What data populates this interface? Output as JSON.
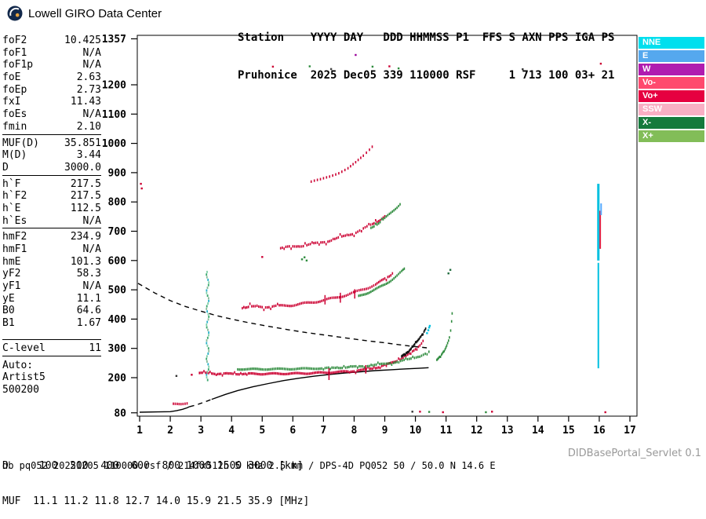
{
  "brand": {
    "title": "Lowell GIRO Data Center"
  },
  "station_header": {
    "line1": "Station    YYYY DAY   DDD HHMMSS P1  FFS S AXN PPS IGA PS",
    "line2": "Pruhonice  2025 Dec05 339 110000 RSF     1 713 100 03+ 21"
  },
  "params": {
    "groups": [
      {
        "rows": [
          [
            "foF2",
            "10.425"
          ],
          [
            "foF1",
            "N/A"
          ],
          [
            "foF1p",
            "N/A"
          ],
          [
            "foE",
            "2.63"
          ],
          [
            "foEp",
            "2.73"
          ],
          [
            "fxI",
            "11.43"
          ],
          [
            "foEs",
            "N/A"
          ],
          [
            "fmin",
            "2.10"
          ]
        ]
      },
      {
        "rows": [
          [
            "MUF(D)",
            "35.851"
          ],
          [
            "M(D)",
            "3.44"
          ],
          [
            "D",
            "3000.0"
          ]
        ]
      },
      {
        "rows": [
          [
            "h`F",
            "217.5"
          ],
          [
            "h`F2",
            "217.5"
          ],
          [
            "h`E",
            "112.5"
          ],
          [
            "h`Es",
            "N/A"
          ]
        ]
      },
      {
        "rows": [
          [
            "hmF2",
            "234.9"
          ],
          [
            "hmF1",
            "N/A"
          ],
          [
            "hmE",
            "101.3"
          ],
          [
            "yF2",
            "58.3"
          ],
          [
            "yF1",
            "N/A"
          ],
          [
            "yE",
            "11.1"
          ],
          [
            "B0",
            "64.6"
          ],
          [
            "B1",
            "1.67"
          ]
        ]
      },
      {
        "rows": [
          [
            "C-level",
            "11"
          ]
        ]
      }
    ],
    "auto_label": "Auto:",
    "auto_program": "Artist5",
    "auto_version": "500200"
  },
  "legend": [
    {
      "label": "NNE",
      "color": "#00dfee"
    },
    {
      "label": "E",
      "color": "#55a8ee"
    },
    {
      "label": "W",
      "color": "#b01cb0"
    },
    {
      "label": "Vo-",
      "color": "#ff4a6e"
    },
    {
      "label": "Vo+",
      "color": "#e60040"
    },
    {
      "label": "SSW",
      "color": "#f9afc4"
    },
    {
      "label": "X-",
      "color": "#157a3c"
    },
    {
      "label": "X+",
      "color": "#82bd58"
    }
  ],
  "scales": {
    "d": {
      "label": "D",
      "values": [
        "100",
        "200",
        "400",
        "600",
        "800",
        "1000",
        "1500",
        "3000"
      ],
      "unit": "[km]"
    },
    "muf": {
      "label": "MUF",
      "values": [
        "11.1",
        "11.2",
        "11.8",
        "12.7",
        "14.0",
        "15.9",
        "21.5",
        "35.9"
      ],
      "unit": "[MHz]"
    }
  },
  "footer": {
    "status": "db pq052 20251205 110000.rsf / 214fx512h 5 kHz 2.5 km / DPS-4D PQ052 50 / 50.0 N 14.6 E",
    "servlet": "DIDBasePortal_Servlet 0.1"
  },
  "chart_data": {
    "type": "scatter",
    "x_axis": {
      "ticks": [
        1,
        2,
        3,
        4,
        5,
        6,
        7,
        8,
        9,
        10,
        11,
        12,
        13,
        14,
        15,
        16,
        17
      ],
      "range": [
        0.92,
        17.23
      ]
    },
    "y_axis": {
      "ticks": [
        80,
        200,
        300,
        400,
        500,
        600,
        700,
        800,
        900,
        1000,
        1100,
        1200,
        1357
      ],
      "range": [
        80,
        1369
      ]
    },
    "grid": false,
    "legend_position": "right-outside",
    "traces": [
      {
        "name": "F-trace-1hop-O",
        "color": "#cc0033",
        "style": "dots",
        "spread": 2.5,
        "step": 0.05,
        "points": [
          [
            2.95,
            216
          ],
          [
            3.5,
            214
          ],
          [
            4.0,
            213
          ],
          [
            5.0,
            213
          ],
          [
            6.0,
            214
          ],
          [
            6.5,
            215
          ],
          [
            7.0,
            217
          ],
          [
            7.5,
            219
          ],
          [
            8.0,
            223
          ],
          [
            8.4,
            228
          ],
          [
            8.8,
            236
          ],
          [
            9.1,
            246
          ],
          [
            9.4,
            258
          ],
          [
            9.7,
            274
          ],
          [
            9.95,
            292
          ],
          [
            10.15,
            312
          ],
          [
            10.3,
            332
          ]
        ]
      },
      {
        "name": "F-trace-1hop-X",
        "color": "#2e8b3d",
        "style": "dots",
        "spread": 2.2,
        "step": 0.055,
        "points": [
          [
            4.2,
            229
          ],
          [
            5.0,
            229
          ],
          [
            6.0,
            230
          ],
          [
            7.0,
            232
          ],
          [
            7.5,
            234
          ],
          [
            8.0,
            237
          ],
          [
            8.5,
            241
          ],
          [
            9.0,
            247
          ],
          [
            9.4,
            254
          ],
          [
            9.8,
            263
          ],
          [
            10.2,
            276
          ],
          [
            10.5,
            290
          ]
        ]
      },
      {
        "name": "F-trace-foF2-cusp",
        "color": "#111111",
        "style": "dots",
        "spread": 1.5,
        "step": 0.03,
        "points": [
          [
            9.55,
            272
          ],
          [
            9.75,
            288
          ],
          [
            9.92,
            306
          ],
          [
            10.06,
            324
          ],
          [
            10.18,
            342
          ],
          [
            10.28,
            358
          ],
          [
            10.36,
            372
          ]
        ]
      },
      {
        "name": "F-trace-2hop-O",
        "color": "#cc0033",
        "style": "dots",
        "spread": 4,
        "step": 0.055,
        "points": [
          [
            4.35,
            440
          ],
          [
            4.6,
            441
          ],
          [
            5.0,
            442
          ],
          [
            5.5,
            444
          ],
          [
            6.0,
            448
          ],
          [
            6.5,
            455
          ],
          [
            7.0,
            464
          ],
          [
            7.4,
            473
          ],
          [
            7.8,
            484
          ],
          [
            8.1,
            494
          ],
          [
            8.4,
            505
          ],
          [
            8.7,
            519
          ],
          [
            8.95,
            533
          ],
          [
            9.15,
            547
          ],
          [
            9.3,
            560
          ]
        ]
      },
      {
        "name": "F-trace-2hop-X",
        "color": "#2e8b3d",
        "style": "dots",
        "spread": 3,
        "step": 0.05,
        "points": [
          [
            8.15,
            478
          ],
          [
            8.45,
            490
          ],
          [
            8.75,
            504
          ],
          [
            9.0,
            518
          ],
          [
            9.2,
            532
          ],
          [
            9.4,
            548
          ],
          [
            9.55,
            562
          ],
          [
            9.68,
            575
          ]
        ]
      },
      {
        "name": "F-trace-3hop-O",
        "color": "#cc0033",
        "style": "dots",
        "spread": 3.5,
        "step": 0.055,
        "points": [
          [
            5.6,
            643
          ],
          [
            6.0,
            647
          ],
          [
            6.4,
            652
          ],
          [
            6.8,
            659
          ],
          [
            7.2,
            668
          ],
          [
            7.6,
            680
          ],
          [
            8.0,
            694
          ],
          [
            8.3,
            708
          ],
          [
            8.6,
            724
          ],
          [
            8.85,
            740
          ],
          [
            9.05,
            755
          ]
        ]
      },
      {
        "name": "F-trace-3hop-X",
        "color": "#2e8b3d",
        "style": "dots",
        "spread": 3,
        "step": 0.05,
        "points": [
          [
            8.55,
            712
          ],
          [
            8.8,
            728
          ],
          [
            9.0,
            744
          ],
          [
            9.2,
            762
          ],
          [
            9.4,
            782
          ],
          [
            9.55,
            800
          ]
        ]
      },
      {
        "name": "F-trace-4hop-O",
        "color": "#cc0033",
        "style": "dots",
        "spread": 3,
        "step": 0.09,
        "points": [
          [
            6.6,
            868
          ],
          [
            6.9,
            876
          ],
          [
            7.2,
            887
          ],
          [
            7.5,
            900
          ],
          [
            7.8,
            916
          ],
          [
            8.05,
            934
          ],
          [
            8.3,
            956
          ],
          [
            8.5,
            978
          ],
          [
            8.68,
            1000
          ]
        ]
      },
      {
        "name": "X-trace-fxI-cusp",
        "color": "#2e8b3d",
        "style": "dots",
        "spread": 1.5,
        "step": 0.03,
        "points": [
          [
            10.7,
            262
          ],
          [
            10.85,
            278
          ],
          [
            10.97,
            296
          ],
          [
            11.05,
            316
          ],
          [
            11.11,
            338
          ],
          [
            11.15,
            362
          ],
          [
            11.18,
            390
          ],
          [
            11.2,
            420
          ],
          [
            11.21,
            438
          ]
        ]
      },
      {
        "name": "E-trace",
        "color": "#cc0033",
        "style": "dots",
        "spread": 1.5,
        "step": 0.07,
        "points": [
          [
            2.1,
            110
          ],
          [
            2.35,
            110
          ],
          [
            2.55,
            113
          ],
          [
            2.62,
            117
          ]
        ]
      },
      {
        "name": "muf-transmission-curve",
        "color": "#000000",
        "style": "dashed-line",
        "points": [
          [
            0.95,
            522
          ],
          [
            1.5,
            489
          ],
          [
            2.0,
            463
          ],
          [
            2.5,
            443
          ],
          [
            3.0,
            427
          ],
          [
            3.5,
            412
          ],
          [
            4.0,
            400
          ],
          [
            4.5,
            389
          ],
          [
            5.0,
            379
          ],
          [
            5.5,
            370
          ],
          [
            6.0,
            361
          ],
          [
            6.5,
            353
          ],
          [
            7.0,
            346
          ],
          [
            7.5,
            339
          ],
          [
            8.0,
            332
          ],
          [
            8.5,
            325
          ],
          [
            9.0,
            319
          ],
          [
            9.5,
            312
          ],
          [
            10.0,
            306
          ],
          [
            10.45,
            301
          ]
        ]
      },
      {
        "name": "true-height-profile-E",
        "color": "#000000",
        "style": "solid-line",
        "points": [
          [
            1.0,
            82
          ],
          [
            1.6,
            83
          ],
          [
            2.0,
            84
          ],
          [
            2.2,
            87
          ],
          [
            2.4,
            92
          ],
          [
            2.55,
            97
          ],
          [
            2.63,
            101
          ]
        ]
      },
      {
        "name": "true-height-profile-valley",
        "color": "#000000",
        "style": "dashed-line",
        "points": [
          [
            2.63,
            101
          ],
          [
            2.85,
            107
          ],
          [
            3.1,
            116
          ],
          [
            3.35,
            126
          ]
        ]
      },
      {
        "name": "true-height-profile-F",
        "color": "#000000",
        "style": "solid-line",
        "points": [
          [
            3.35,
            126
          ],
          [
            3.8,
            143
          ],
          [
            4.2,
            156
          ],
          [
            4.7,
            169
          ],
          [
            5.2,
            180
          ],
          [
            5.7,
            190
          ],
          [
            6.2,
            198
          ],
          [
            6.7,
            205
          ],
          [
            7.2,
            211
          ],
          [
            7.7,
            216
          ],
          [
            8.2,
            220
          ],
          [
            8.7,
            224
          ],
          [
            9.2,
            227
          ],
          [
            9.7,
            230
          ],
          [
            10.1,
            232
          ],
          [
            10.43,
            234
          ]
        ]
      }
    ],
    "vertical_features": [
      {
        "f": 3.22,
        "from": 196,
        "to": 566,
        "style": "sparse",
        "gap": 9,
        "colors": [
          "#3aa76d",
          "#7fd0a8",
          "#2ab0c8",
          "#88bb99"
        ]
      },
      {
        "f": 7.18,
        "from": 192,
        "to": 232,
        "style": "dense",
        "w": 1.6,
        "color": "#cc0033"
      },
      {
        "f": 8.38,
        "from": 214,
        "to": 243,
        "style": "dense",
        "w": 1.6,
        "color": "#cc0033"
      },
      {
        "f": 7.05,
        "from": 450,
        "to": 482,
        "style": "dense",
        "w": 1.5,
        "color": "#cc0033"
      },
      {
        "f": 7.55,
        "from": 456,
        "to": 490,
        "style": "dense",
        "w": 1.5,
        "color": "#cc0033"
      },
      {
        "f": 8.02,
        "from": 470,
        "to": 502,
        "style": "dense",
        "w": 1.5,
        "color": "#cc0033"
      },
      {
        "f": 15.97,
        "from": 600,
        "to": 862,
        "style": "dense",
        "w": 3,
        "color": "#00c0e0"
      },
      {
        "f": 15.97,
        "from": 232,
        "to": 592,
        "style": "dense",
        "w": 2,
        "color": "#00c0e0"
      },
      {
        "f": 16.03,
        "from": 640,
        "to": 770,
        "style": "dense",
        "w": 2,
        "color": "#dd2244"
      },
      {
        "f": 16.06,
        "from": 755,
        "to": 795,
        "style": "dense",
        "w": 2,
        "color": "#55aaff"
      }
    ],
    "noise_dots": [
      [
        1.04,
        862,
        "#cc0033"
      ],
      [
        1.07,
        846,
        "#cc0033"
      ],
      [
        2.2,
        206,
        "#333333"
      ],
      [
        2.7,
        210,
        "#cc0033"
      ],
      [
        5.0,
        612,
        "#cc0033"
      ],
      [
        6.3,
        604,
        "#2e8b3d"
      ],
      [
        6.45,
        600,
        "#2e8b3d"
      ],
      [
        6.38,
        611,
        "#2e8b3d"
      ],
      [
        5.35,
        1262,
        "#cc0033"
      ],
      [
        6.55,
        1263,
        "#2e8b3d"
      ],
      [
        7.25,
        1254,
        "#444444"
      ],
      [
        8.05,
        1302,
        "#990099"
      ],
      [
        8.6,
        1262,
        "#2e8b3d"
      ],
      [
        9.15,
        1263,
        "#cc0033"
      ],
      [
        9.45,
        1256,
        "#2e8b3d"
      ],
      [
        13.5,
        1253,
        "#333333"
      ],
      [
        16.05,
        1272,
        "#cc0033"
      ],
      [
        9.9,
        84,
        "#333333"
      ],
      [
        10.15,
        84,
        "#cc0033"
      ],
      [
        10.45,
        83,
        "#2e8b3d"
      ],
      [
        10.9,
        82,
        "#cc0033"
      ],
      [
        12.3,
        82,
        "#2e8b3d"
      ],
      [
        12.5,
        84,
        "#cc0033"
      ],
      [
        16.2,
        82,
        "#cc0033"
      ],
      [
        11.08,
        556,
        "#1e6b3c"
      ],
      [
        11.14,
        568,
        "#1e6b3c"
      ],
      [
        10.38,
        352,
        "#00c0e0"
      ],
      [
        10.42,
        362,
        "#00c0e0"
      ],
      [
        10.45,
        371,
        "#00c0e0"
      ],
      [
        10.47,
        377,
        "#00c0e0"
      ]
    ]
  }
}
